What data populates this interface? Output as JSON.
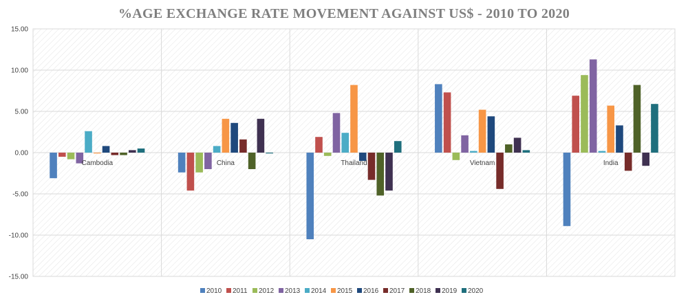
{
  "chart_data": {
    "type": "bar",
    "title": "%AGE EXCHANGE RATE MOVEMENT AGAINST US$ - 2010 TO 2020",
    "xlabel": "",
    "ylabel": "",
    "ylim": [
      -15,
      15
    ],
    "yticks": [
      "15.00",
      "10.00",
      "5.00",
      "0.00",
      "-5.00",
      "-10.00",
      "-15.00"
    ],
    "grid": true,
    "legend_position": "bottom",
    "categories": [
      "Cambodia",
      "China",
      "Thailand",
      "Vietnam",
      "India"
    ],
    "series": [
      {
        "name": "2010",
        "color": "#4f81bd",
        "values": [
          -3.1,
          -2.4,
          -10.5,
          8.3,
          -8.9
        ]
      },
      {
        "name": "2011",
        "color": "#c0504d",
        "values": [
          -0.5,
          -4.6,
          1.9,
          7.3,
          6.9
        ]
      },
      {
        "name": "2012",
        "color": "#9bbb59",
        "values": [
          -0.8,
          -2.4,
          -0.4,
          -0.9,
          9.4
        ]
      },
      {
        "name": "2013",
        "color": "#8064a2",
        "values": [
          -1.3,
          -2.0,
          4.8,
          2.1,
          11.3
        ]
      },
      {
        "name": "2014",
        "color": "#4bacc6",
        "values": [
          2.6,
          0.8,
          2.4,
          0.2,
          0.2
        ]
      },
      {
        "name": "2015",
        "color": "#f79646",
        "values": [
          -0.1,
          4.1,
          8.2,
          5.2,
          5.7
        ]
      },
      {
        "name": "2016",
        "color": "#1f497d",
        "values": [
          0.8,
          3.6,
          -1.0,
          4.4,
          3.3
        ]
      },
      {
        "name": "2017",
        "color": "#772c2a",
        "values": [
          -0.3,
          1.6,
          -3.3,
          -4.4,
          -2.2
        ]
      },
      {
        "name": "2018",
        "color": "#4f6228",
        "values": [
          -0.3,
          -2.0,
          -5.2,
          1.0,
          8.2
        ]
      },
      {
        "name": "2019",
        "color": "#3f3151",
        "values": [
          0.3,
          4.1,
          -4.6,
          1.8,
          -1.6
        ]
      },
      {
        "name": "2020",
        "color": "#1f6f7d",
        "values": [
          0.5,
          -0.1,
          1.4,
          0.3,
          5.9
        ]
      }
    ]
  }
}
